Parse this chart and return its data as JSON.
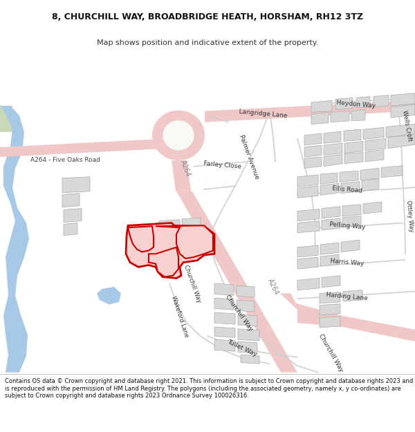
{
  "title": "8, CHURCHILL WAY, BROADBRIDGE HEATH, HORSHAM, RH12 3TZ",
  "subtitle": "Map shows position and indicative extent of the property.",
  "footer": "Contains OS data © Crown copyright and database right 2021. This information is subject to Crown copyright and database rights 2023 and is reproduced with the permission of HM Land Registry. The polygons (including the associated geometry, namely x, y co-ordinates) are subject to Crown copyright and database rights 2023 Ordnance Survey 100026316.",
  "map_bg": "#f5f5f2",
  "road_color": "#f0c8c8",
  "building_color": "#d8d8d8",
  "building_edge": "#aaaaaa",
  "water_color": "#a8c8e8",
  "property_color": "#cc0000",
  "green_color": "#c8d8b8"
}
